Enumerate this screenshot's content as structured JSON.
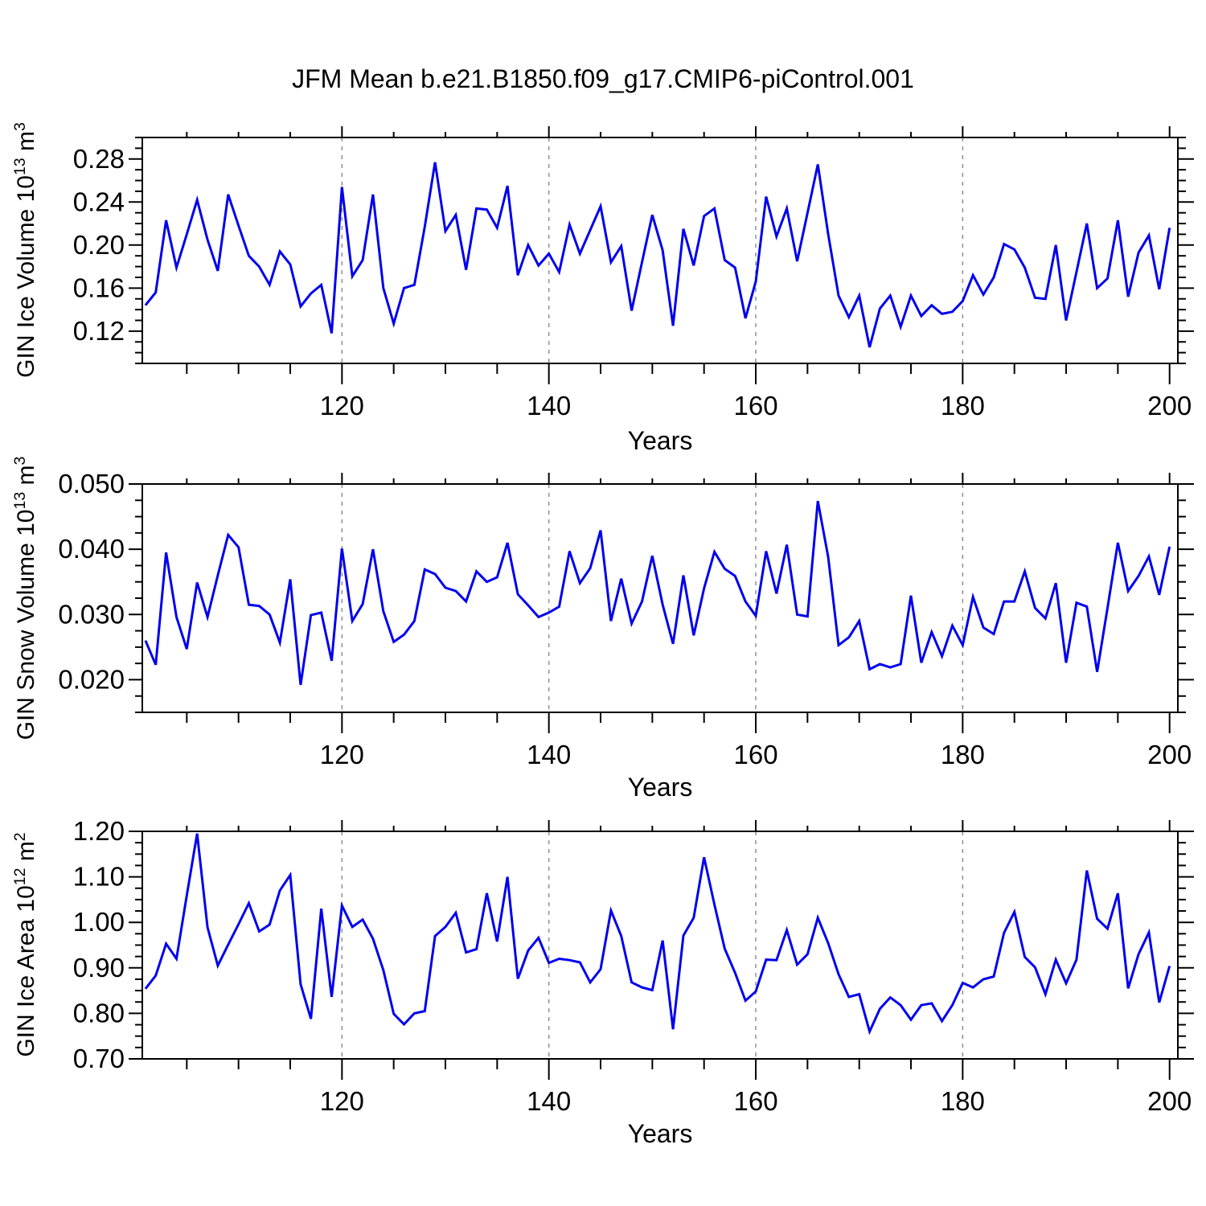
{
  "figure": {
    "title": "JFM Mean b.e21.B1850.f09_g17.CMIP6-piControl.001"
  },
  "style": {
    "line_color": "#0000EE",
    "grid_color": "#909090",
    "frame_color": "#000000",
    "background": "#ffffff"
  },
  "chart_data": [
    {
      "type": "line",
      "ylabel": {
        "prefix": "GIN Ice Volume 10",
        "exp": "13",
        "unit": " m",
        "unit_exp": "3",
        "text": "GIN Ice Volume 10^13 m^3"
      },
      "xlabel": "Years",
      "xlim": [
        100.7,
        200.8
      ],
      "ylim": [
        0.09,
        0.3
      ],
      "xticks_major": [
        120,
        140,
        160,
        180,
        200
      ],
      "xtick_labels": [
        "120",
        "140",
        "160",
        "180",
        "200"
      ],
      "xminor_step": 5,
      "grid_x": [
        120,
        140,
        160,
        180
      ],
      "yticks_major": [
        0.12,
        0.16,
        0.2,
        0.24,
        0.28
      ],
      "ytick_labels": [
        "0.12",
        "0.16",
        "0.20",
        "0.24",
        "0.28"
      ],
      "yminor_step": 0.01,
      "x_start_year": 101,
      "x_end_year": 200,
      "values": [
        0.144,
        0.156,
        0.223,
        0.179,
        0.21,
        0.242,
        0.205,
        0.176,
        0.247,
        0.218,
        0.19,
        0.18,
        0.163,
        0.194,
        0.182,
        0.143,
        0.155,
        0.163,
        0.118,
        0.254,
        0.171,
        0.186,
        0.247,
        0.16,
        0.127,
        0.16,
        0.163,
        0.217,
        0.277,
        0.213,
        0.228,
        0.177,
        0.234,
        0.233,
        0.216,
        0.255,
        0.172,
        0.2,
        0.181,
        0.192,
        0.175,
        0.219,
        0.192,
        0.214,
        0.236,
        0.184,
        0.199,
        0.139,
        0.184,
        0.228,
        0.195,
        0.125,
        0.215,
        0.181,
        0.227,
        0.234,
        0.186,
        0.179,
        0.132,
        0.166,
        0.245,
        0.208,
        0.234,
        0.185,
        0.23,
        0.275,
        0.21,
        0.153,
        0.133,
        0.153,
        0.105,
        0.141,
        0.153,
        0.124,
        0.153,
        0.134,
        0.144,
        0.136,
        0.138,
        0.148,
        0.172,
        0.154,
        0.17,
        0.201,
        0.196,
        0.179,
        0.151,
        0.15,
        0.2,
        0.13,
        0.175,
        0.22,
        0.16,
        0.169,
        0.223,
        0.152,
        0.193,
        0.209,
        0.159,
        0.216
      ]
    },
    {
      "type": "line",
      "ylabel": {
        "prefix": "GIN Snow Volume 10",
        "exp": "13",
        "unit": " m",
        "unit_exp": "3",
        "text": "GIN Snow Volume 10^13 m^3"
      },
      "xlabel": "Years",
      "xlim": [
        100.7,
        200.8
      ],
      "ylim": [
        0.015,
        0.05
      ],
      "xticks_major": [
        120,
        140,
        160,
        180,
        200
      ],
      "xtick_labels": [
        "120",
        "140",
        "160",
        "180",
        "200"
      ],
      "xminor_step": 5,
      "grid_x": [
        120,
        140,
        160,
        180
      ],
      "yticks_major": [
        0.02,
        0.03,
        0.04,
        0.05
      ],
      "ytick_labels": [
        "0.020",
        "0.030",
        "0.040",
        "0.050"
      ],
      "yminor_step": 0.0025,
      "x_start_year": 101,
      "x_end_year": 200,
      "values": [
        0.026,
        0.0223,
        0.0395,
        0.0296,
        0.0247,
        0.0349,
        0.0296,
        0.036,
        0.0422,
        0.0403,
        0.0315,
        0.0313,
        0.03,
        0.0257,
        0.0354,
        0.0192,
        0.0299,
        0.0303,
        0.0229,
        0.0401,
        0.029,
        0.0316,
        0.04,
        0.0305,
        0.0258,
        0.0269,
        0.029,
        0.0369,
        0.0362,
        0.0341,
        0.0336,
        0.032,
        0.0366,
        0.035,
        0.0357,
        0.041,
        0.0331,
        0.0314,
        0.0296,
        0.0303,
        0.0312,
        0.0397,
        0.0348,
        0.0371,
        0.0429,
        0.029,
        0.0355,
        0.0286,
        0.032,
        0.039,
        0.0315,
        0.0255,
        0.036,
        0.0268,
        0.034,
        0.0396,
        0.037,
        0.0359,
        0.032,
        0.0298,
        0.0397,
        0.0332,
        0.0407,
        0.03,
        0.0297,
        0.0474,
        0.0388,
        0.0253,
        0.0265,
        0.029,
        0.0216,
        0.0224,
        0.0219,
        0.0224,
        0.0329,
        0.0226,
        0.0273,
        0.0236,
        0.0283,
        0.0253,
        0.0327,
        0.028,
        0.027,
        0.032,
        0.032,
        0.0366,
        0.031,
        0.0294,
        0.0348,
        0.0226,
        0.0318,
        0.0312,
        0.0212,
        0.031,
        0.041,
        0.0336,
        0.0359,
        0.0389,
        0.033,
        0.0404
      ]
    },
    {
      "type": "line",
      "ylabel": {
        "prefix": "GIN Ice Area 10",
        "exp": "12",
        "unit": " m",
        "unit_exp": "2",
        "text": "GIN Ice Area 10^12 m^2"
      },
      "xlabel": "Years",
      "xlim": [
        100.7,
        200.8
      ],
      "ylim": [
        0.7,
        1.2
      ],
      "xticks_major": [
        120,
        140,
        160,
        180,
        200
      ],
      "xtick_labels": [
        "120",
        "140",
        "160",
        "180",
        "200"
      ],
      "xminor_step": 5,
      "grid_x": [
        120,
        140,
        160,
        180
      ],
      "yticks_major": [
        0.7,
        0.8,
        0.9,
        1.0,
        1.1,
        1.2
      ],
      "ytick_labels": [
        "0.70",
        "0.80",
        "0.90",
        "1.00",
        "1.10",
        "1.20"
      ],
      "yminor_step": 0.025,
      "x_start_year": 101,
      "x_end_year": 200,
      "values": [
        0.854,
        0.883,
        0.953,
        0.92,
        1.059,
        1.195,
        0.989,
        0.905,
        0.951,
        0.996,
        1.042,
        0.98,
        0.995,
        1.07,
        1.104,
        0.864,
        0.788,
        1.03,
        0.836,
        1.037,
        0.99,
        1.006,
        0.964,
        0.895,
        0.799,
        0.776,
        0.8,
        0.805,
        0.97,
        0.99,
        1.021,
        0.934,
        0.941,
        1.064,
        0.958,
        1.1,
        0.876,
        0.938,
        0.966,
        0.911,
        0.92,
        0.917,
        0.912,
        0.868,
        0.897,
        1.026,
        0.97,
        0.868,
        0.857,
        0.851,
        0.96,
        0.765,
        0.971,
        1.01,
        1.143,
        1.039,
        0.942,
        0.889,
        0.828,
        0.848,
        0.918,
        0.917,
        0.983,
        0.907,
        0.93,
        1.01,
        0.954,
        0.886,
        0.836,
        0.842,
        0.76,
        0.81,
        0.835,
        0.818,
        0.786,
        0.818,
        0.822,
        0.783,
        0.818,
        0.867,
        0.857,
        0.875,
        0.881,
        0.977,
        1.023,
        0.924,
        0.901,
        0.842,
        0.918,
        0.866,
        0.918,
        1.114,
        1.008,
        0.986,
        1.064,
        0.855,
        0.93,
        0.978,
        0.824,
        0.904
      ]
    }
  ]
}
